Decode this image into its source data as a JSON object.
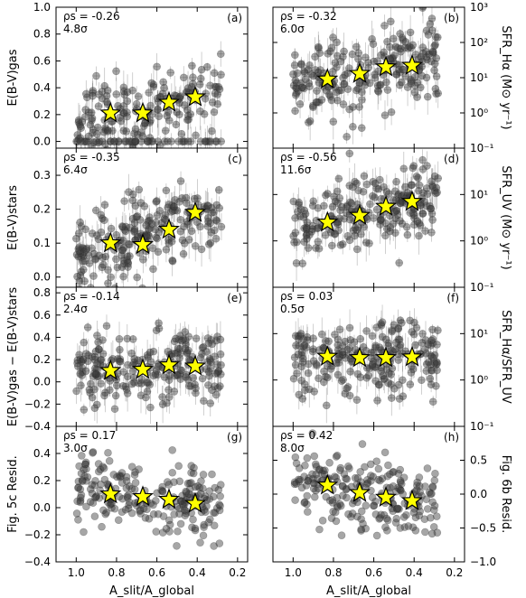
{
  "figure": {
    "xlabel": "A_slit/A_global",
    "x_ticks": [
      "1.0",
      "0.8",
      "0.6",
      "0.4",
      "0.2"
    ]
  },
  "chart_data": [
    {
      "panel": "(a)",
      "type": "scatter",
      "column": "left",
      "row": 0,
      "ylabel": "E(B-V)gas",
      "y_scale": "linear",
      "ylim": [
        -0.05,
        1.0
      ],
      "yticks": [
        "0.0",
        "0.2",
        "0.4",
        "0.6",
        "0.8",
        "1.0"
      ],
      "rho_label": "ρs = -0.26",
      "sigma_label": "4.8σ",
      "errorbars": true,
      "stars": [
        [
          0.83,
          0.21
        ],
        [
          0.67,
          0.21
        ],
        [
          0.54,
          0.29
        ],
        [
          0.41,
          0.33
        ]
      ]
    },
    {
      "panel": "(b)",
      "type": "scatter",
      "column": "right",
      "row": 0,
      "ylabel": "SFR_Hα (M⊙ yr⁻¹)",
      "y_scale": "log",
      "ylim": [
        0.1,
        1000
      ],
      "yticks": [
        "10⁻¹",
        "10⁰",
        "10¹",
        "10²",
        "10³"
      ],
      "rho_label": "ρs = -0.32",
      "sigma_label": "6.0σ",
      "errorbars": true,
      "stars": [
        [
          0.83,
          9
        ],
        [
          0.67,
          13
        ],
        [
          0.54,
          20
        ],
        [
          0.41,
          22
        ]
      ]
    },
    {
      "panel": "(c)",
      "type": "scatter",
      "column": "left",
      "row": 1,
      "ylabel": "E(B-V)stars",
      "y_scale": "linear",
      "ylim": [
        -0.03,
        0.38
      ],
      "yticks": [
        "0.0",
        "0.1",
        "0.2",
        "0.3"
      ],
      "rho_label": "ρs = -0.35",
      "sigma_label": "6.4σ",
      "errorbars": true,
      "stars": [
        [
          0.83,
          0.1
        ],
        [
          0.67,
          0.095
        ],
        [
          0.54,
          0.14
        ],
        [
          0.41,
          0.19
        ]
      ]
    },
    {
      "panel": "(d)",
      "type": "scatter",
      "column": "right",
      "row": 1,
      "ylabel": "SFR_UV (M⊙ yr⁻¹)",
      "y_scale": "log",
      "ylim": [
        0.1,
        100
      ],
      "yticks": [
        "10⁻¹",
        "10⁰",
        "10¹"
      ],
      "rho_label": "ρs = -0.56",
      "sigma_label": "11.6σ",
      "errorbars": true,
      "stars": [
        [
          0.83,
          2.5
        ],
        [
          0.67,
          3.5
        ],
        [
          0.54,
          5.5
        ],
        [
          0.41,
          7
        ]
      ]
    },
    {
      "panel": "(e)",
      "type": "scatter",
      "column": "left",
      "row": 2,
      "ylabel": "E(B-V)gas − E(B-V)stars",
      "y_scale": "linear",
      "ylim": [
        -0.4,
        0.85
      ],
      "yticks": [
        "−0.4",
        "−0.2",
        "0.0",
        "0.2",
        "0.4",
        "0.6",
        "0.8"
      ],
      "rho_label": "ρs = -0.14",
      "sigma_label": "2.4σ",
      "errorbars": true,
      "stars": [
        [
          0.83,
          0.1
        ],
        [
          0.67,
          0.11
        ],
        [
          0.54,
          0.15
        ],
        [
          0.41,
          0.14
        ]
      ]
    },
    {
      "panel": "(f)",
      "type": "scatter",
      "column": "right",
      "row": 2,
      "ylabel": "SFR_Hα/SFR_UV",
      "y_scale": "log",
      "ylim": [
        0.1,
        100
      ],
      "yticks": [
        "10⁻¹",
        "10⁰",
        "10¹"
      ],
      "rho_label": "ρs = 0.03",
      "sigma_label": "0.5σ",
      "errorbars": true,
      "stars": [
        [
          0.83,
          3.2
        ],
        [
          0.67,
          3.0
        ],
        [
          0.54,
          3.0
        ],
        [
          0.41,
          3.1
        ]
      ]
    },
    {
      "panel": "(g)",
      "type": "scatter",
      "column": "left",
      "row": 3,
      "ylabel": "Fig. 5c Resid.",
      "y_scale": "linear",
      "ylim": [
        -0.4,
        0.6
      ],
      "yticks": [
        "−0.4",
        "−0.2",
        "0.0",
        "0.2",
        "0.4"
      ],
      "rho_label": "ρs = 0.17",
      "sigma_label": "3.0σ",
      "errorbars": false,
      "stars": [
        [
          0.83,
          0.1
        ],
        [
          0.67,
          0.08
        ],
        [
          0.54,
          0.06
        ],
        [
          0.41,
          0.03
        ]
      ]
    },
    {
      "panel": "(h)",
      "type": "scatter",
      "column": "right",
      "row": 3,
      "ylabel": "Fig. 6b Resid.",
      "y_scale": "linear",
      "ylim": [
        -1.0,
        1.0
      ],
      "yticks": [
        "−1.0",
        "−0.5",
        "0.0",
        "0.5"
      ],
      "rho_label": "ρs = 0.42",
      "sigma_label": "8.0σ",
      "errorbars": false,
      "stars": [
        [
          0.83,
          0.13
        ],
        [
          0.67,
          0.02
        ],
        [
          0.54,
          -0.05
        ],
        [
          0.41,
          -0.1
        ]
      ]
    }
  ]
}
